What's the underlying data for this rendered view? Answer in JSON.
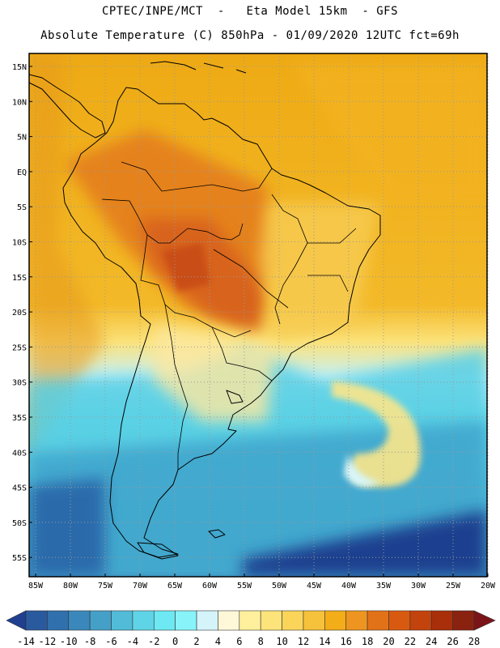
{
  "header": {
    "line1": "CPTEC/INPE/MCT  -   Eta Model 15km  - GFS",
    "line2": "Absolute Temperature (C) 850hPa - 01/09/2020 12UTC fct=69h"
  },
  "map": {
    "lat_labels": [
      "15N",
      "10N",
      "5N",
      "EQ",
      "5S",
      "10S",
      "15S",
      "20S",
      "25S",
      "30S",
      "35S",
      "40S",
      "45S",
      "50S",
      "55S"
    ],
    "lon_labels": [
      "85W",
      "80W",
      "75W",
      "70W",
      "65W",
      "60W",
      "55W",
      "50W",
      "45W",
      "40W",
      "35W",
      "30W",
      "25W",
      "20W"
    ]
  },
  "colorbar": {
    "labels": [
      "-14",
      "-12",
      "-10",
      "-8",
      "-6",
      "-4",
      "-2",
      "0",
      "2",
      "4",
      "6",
      "8",
      "10",
      "12",
      "14",
      "16",
      "18",
      "20",
      "22",
      "24",
      "26",
      "28"
    ],
    "colors": [
      "#1f3f8f",
      "#2a5a9e",
      "#3070ac",
      "#3a88bb",
      "#45a0c8",
      "#52bcd8",
      "#5fd4e6",
      "#6ee8f2",
      "#88f4fa",
      "#d4f4fa",
      "#fef8d8",
      "#fef09c",
      "#fde47a",
      "#fbd55a",
      "#f6c23c",
      "#f2ad18",
      "#ed9520",
      "#e27218",
      "#d85a10",
      "#c3430c",
      "#a82f0a",
      "#8a2210",
      "#7a1418"
    ]
  }
}
